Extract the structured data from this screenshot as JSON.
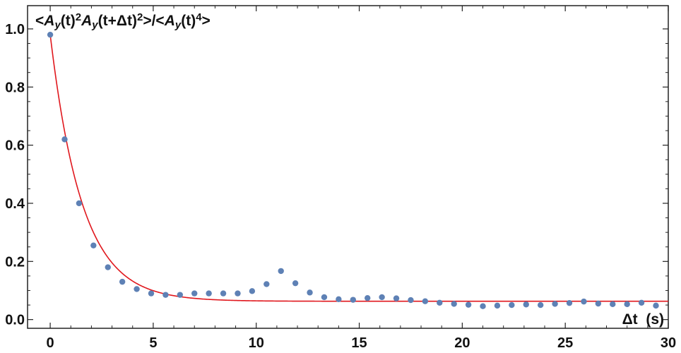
{
  "chart_data": {
    "type": "scatter",
    "title": "",
    "ylabel": {
      "parts": [
        {
          "t": "<",
          "i": false,
          "s": 0
        },
        {
          "t": "A",
          "i": true,
          "s": 0
        },
        {
          "t": "y",
          "i": true,
          "s": -1
        },
        {
          "t": "(t)",
          "i": false,
          "s": 0
        },
        {
          "t": "2",
          "i": false,
          "s": 1
        },
        {
          "t": "A",
          "i": true,
          "s": 0
        },
        {
          "t": "y",
          "i": true,
          "s": -1
        },
        {
          "t": "(t+Δt)",
          "i": false,
          "s": 0
        },
        {
          "t": "2",
          "i": false,
          "s": 1
        },
        {
          "t": ">/<",
          "i": false,
          "s": 0
        },
        {
          "t": "A",
          "i": true,
          "s": 0
        },
        {
          "t": "y",
          "i": true,
          "s": -1
        },
        {
          "t": "(t)",
          "i": false,
          "s": 0
        },
        {
          "t": "4",
          "i": false,
          "s": 1
        },
        {
          "t": ">",
          "i": false,
          "s": 0
        }
      ]
    },
    "xlabel": "Δt  (s)",
    "xlim": [
      -1.1,
      30
    ],
    "ylim": [
      -0.03,
      1.08
    ],
    "xticks": [
      0,
      5,
      10,
      15,
      20,
      25,
      30
    ],
    "yticks": [
      0.0,
      0.2,
      0.4,
      0.6,
      0.8,
      1.0
    ],
    "ytick_labels": [
      "0.0",
      "0.2",
      "0.4",
      "0.6",
      "0.8",
      "1.0"
    ],
    "grid": false,
    "series": [
      {
        "kind": "points",
        "color": "#5e81b5",
        "x": [
          0.0,
          0.7,
          1.4,
          2.1,
          2.8,
          3.5,
          4.2,
          4.9,
          5.6,
          6.3,
          7.0,
          7.7,
          8.4,
          9.1,
          9.8,
          10.5,
          11.2,
          11.9,
          12.6,
          13.3,
          14.0,
          14.7,
          15.4,
          16.1,
          16.8,
          17.5,
          18.2,
          18.9,
          19.6,
          20.3,
          21.0,
          21.7,
          22.4,
          23.1,
          23.8,
          24.5,
          25.2,
          25.9,
          26.6,
          27.3,
          28.0,
          28.7,
          29.4
        ],
        "y": [
          0.98,
          0.62,
          0.4,
          0.255,
          0.18,
          0.13,
          0.105,
          0.09,
          0.085,
          0.085,
          0.09,
          0.09,
          0.09,
          0.09,
          0.098,
          0.122,
          0.167,
          0.125,
          0.093,
          0.077,
          0.07,
          0.068,
          0.074,
          0.077,
          0.073,
          0.067,
          0.063,
          0.058,
          0.054,
          0.051,
          0.046,
          0.048,
          0.05,
          0.052,
          0.05,
          0.054,
          0.057,
          0.062,
          0.055,
          0.053,
          0.053,
          0.058,
          0.048
        ]
      },
      {
        "kind": "fit",
        "color": "#e0171d",
        "formula": "0.063 + 0.917*exp(-x/1.55)"
      }
    ]
  }
}
